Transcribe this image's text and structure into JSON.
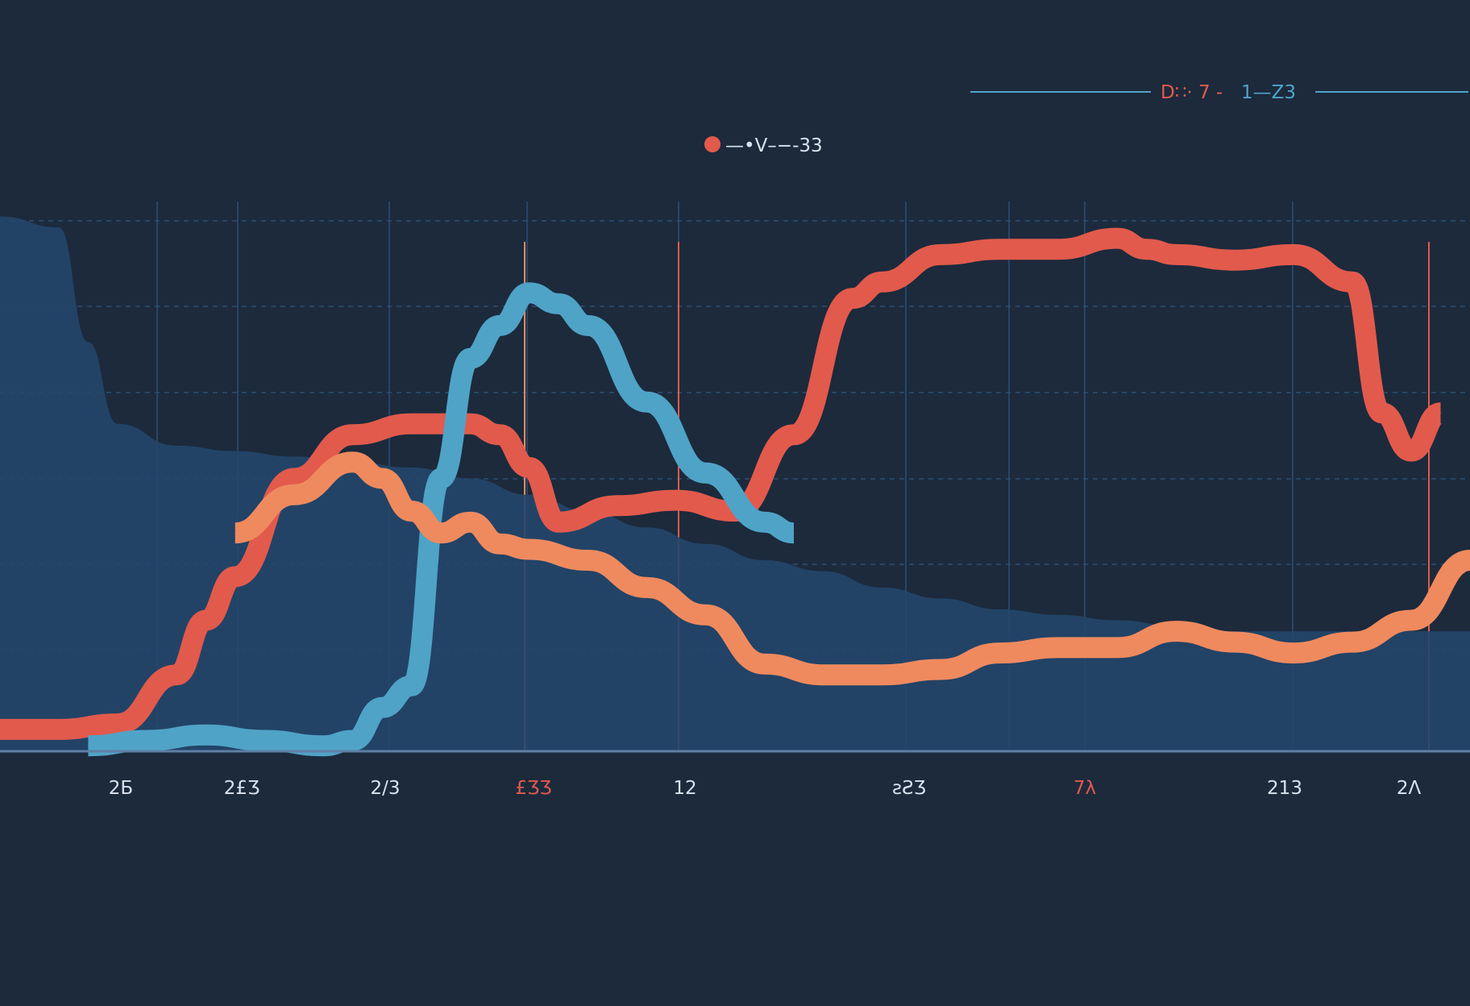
{
  "colors": {
    "background": "#1c2a3c",
    "plot_background": "#1d3250",
    "grid": "#2c4f73",
    "area_fill": "#24466a",
    "series_red": "#e25a4c",
    "series_orange": "#ef8a5e",
    "series_teal": "#4fa3c7",
    "series_navy": "#2d5f8a",
    "axis_line": "#5f7fa4",
    "text_light": "#d9e2ee",
    "text_red": "#e25a4c",
    "text_teal": "#4fa3c7"
  },
  "header": {
    "range_label_red": "D∷· 7 -",
    "range_label_teal": "1—Z3"
  },
  "legend": {
    "label": "—•V–−-33"
  },
  "chart_data": {
    "type": "line",
    "title": "",
    "xlabel": "",
    "ylabel": "",
    "grid": true,
    "legend_placement": "top-center",
    "xlim": [
      0,
      100
    ],
    "ylim": [
      0,
      100
    ],
    "x_tick_labels": [
      "2Б",
      "2£Ʒ",
      "2/3",
      "£ƷƷ",
      "12",
      "ƨƧƷ",
      "7λ",
      "213",
      "2Λ"
    ],
    "series": [
      {
        "color": "#2d5f8a",
        "style": "area",
        "x": [
          0,
          4,
          6,
          8,
          12,
          16,
          20,
          24,
          28,
          32,
          36,
          40,
          44,
          48,
          52,
          56,
          60,
          64,
          68,
          72,
          76,
          80,
          84,
          88,
          92,
          96,
          100
        ],
        "y": [
          98,
          96,
          75,
          60,
          56,
          55,
          54,
          53,
          52,
          50,
          47,
          44,
          41,
          38,
          35,
          33,
          30,
          28,
          26,
          25,
          24,
          23,
          22,
          22,
          22,
          22,
          22
        ]
      },
      {
        "color": "#e25a4c",
        "style": "band",
        "x": [
          0,
          4,
          8,
          12,
          14,
          16,
          20,
          24,
          28,
          32,
          34,
          36,
          38,
          42,
          46,
          50,
          54,
          58,
          60,
          64,
          68,
          72,
          76,
          78,
          80,
          84,
          88,
          92,
          94,
          96,
          98
        ],
        "y": [
          4,
          4,
          5,
          14,
          24,
          32,
          50,
          58,
          60,
          60,
          58,
          52,
          42,
          45,
          46,
          44,
          58,
          83,
          86,
          91,
          92,
          92,
          94,
          92,
          91,
          90,
          91,
          86,
          62,
          55,
          62
        ]
      },
      {
        "color": "#4fa3c7",
        "style": "band",
        "x": [
          6,
          10,
          14,
          18,
          22,
          24,
          26,
          28,
          30,
          32,
          34,
          36,
          38,
          40,
          44,
          48,
          52,
          54
        ],
        "y": [
          1,
          2,
          3,
          2,
          1,
          2,
          8,
          12,
          50,
          72,
          78,
          84,
          82,
          78,
          64,
          51,
          42,
          40
        ]
      },
      {
        "color": "#ef8a5e",
        "style": "band",
        "x": [
          16,
          20,
          24,
          26,
          28,
          30,
          32,
          34,
          36,
          40,
          44,
          48,
          52,
          56,
          60,
          64,
          68,
          72,
          76,
          80,
          84,
          88,
          92,
          96,
          100
        ],
        "y": [
          40,
          47,
          53,
          50,
          44,
          40,
          42,
          38,
          37,
          35,
          30,
          25,
          16,
          14,
          14,
          15,
          18,
          19,
          19,
          22,
          20,
          18,
          20,
          24,
          35
        ]
      }
    ]
  }
}
